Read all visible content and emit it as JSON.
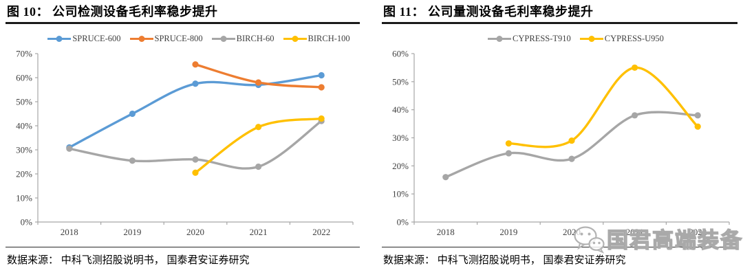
{
  "colors": {
    "title_rule": "#1a1a1a",
    "source_rule": "#2a2a2a",
    "axis": "#a6a6a6",
    "axis_label": "#404040",
    "legend_label": "#404040",
    "watermark": "#a9a9a9"
  },
  "panels": [
    {
      "title": "图 10： 公司检测设备毛利率稳步提升",
      "source": "数据来源： 中科飞测招股说明书， 国泰君安证券研究"
    },
    {
      "title": "图 11： 公司量测设备毛利率稳步提升",
      "source": "数据来源： 中科飞测招股说明书， 国泰君安证券研究",
      "watermark": {
        "icon": "wechat-icon",
        "text": "国君高端装备"
      }
    }
  ],
  "chart_data": [
    {
      "type": "line",
      "title": "公司检测设备毛利率稳步提升",
      "categories": [
        "2018",
        "2019",
        "2020",
        "2021",
        "2022"
      ],
      "series": [
        {
          "name": "SPRUCE-600",
          "color": "#5B9BD5",
          "values": [
            31,
            45,
            57.5,
            57,
            61
          ]
        },
        {
          "name": "SPRUCE-800",
          "color": "#ED7D31",
          "values": [
            null,
            null,
            65.5,
            58,
            56
          ]
        },
        {
          "name": "BIRCH-60",
          "color": "#A6A6A6",
          "values": [
            30.5,
            25.5,
            26,
            23,
            42
          ]
        },
        {
          "name": "BIRCH-100",
          "color": "#FFC000",
          "values": [
            null,
            null,
            20.5,
            39.5,
            43
          ]
        }
      ],
      "xlabel": "",
      "ylabel": "",
      "ylim": [
        0,
        70
      ],
      "ytick_step": 10,
      "ytick_suffix": "%",
      "grid": false,
      "legend_position": "top",
      "line_style": "smooth",
      "markers": "circle"
    },
    {
      "type": "line",
      "title": "公司量测设备毛利率稳步提升",
      "categories": [
        "2018",
        "2019",
        "2020",
        "2021",
        "2022"
      ],
      "series": [
        {
          "name": "CYPRESS-T910",
          "color": "#A6A6A6",
          "values": [
            16,
            24.5,
            22.5,
            38,
            38
          ]
        },
        {
          "name": "CYPRESS-U950",
          "color": "#FFC000",
          "values": [
            null,
            28,
            29,
            55,
            34
          ]
        }
      ],
      "xlabel": "",
      "ylabel": "",
      "ylim": [
        0,
        60
      ],
      "ytick_step": 10,
      "ytick_suffix": "%",
      "grid": false,
      "legend_position": "top",
      "line_style": "smooth",
      "markers": "circle"
    }
  ]
}
